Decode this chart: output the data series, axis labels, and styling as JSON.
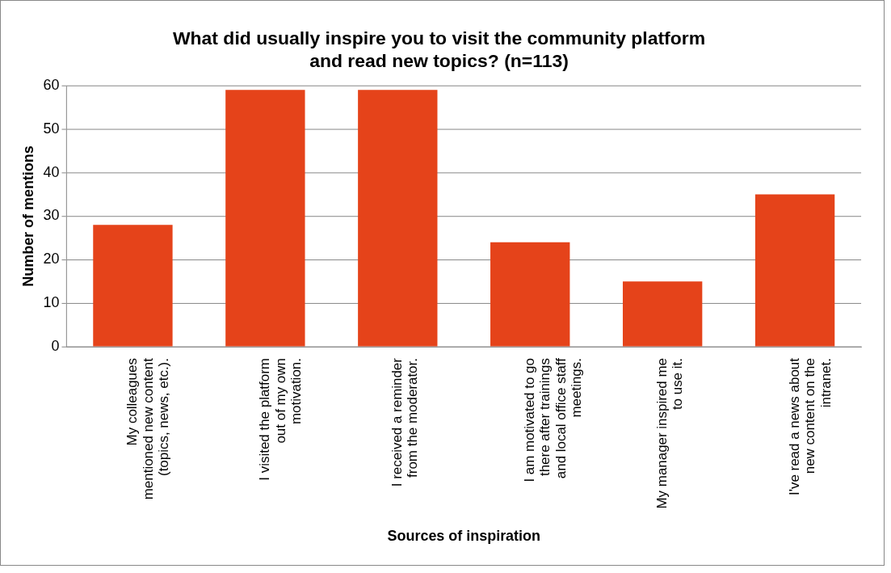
{
  "chart_data": {
    "type": "bar",
    "title": "What did usually inspire you to visit the community platform and read new topics? (n=113)",
    "xlabel": "Sources of inspiration",
    "ylabel": "Number of mentions",
    "categories": [
      "My colleagues mentioned new content (topics, news, etc.).",
      "I visited the platform out of my own motivation.",
      "I received a reminder from the moderator.",
      "I am motivated to go there after trainings and local office staff meetings.",
      "My manager inspired me to use it.",
      "I've read a news about new content on the intranet."
    ],
    "values": [
      28,
      59,
      59,
      24,
      15,
      35
    ],
    "color": "#e5431a",
    "ylim": [
      0,
      60
    ],
    "yticks": [
      0,
      10,
      20,
      30,
      40,
      50,
      60
    ],
    "grid": "y",
    "legend": false
  }
}
